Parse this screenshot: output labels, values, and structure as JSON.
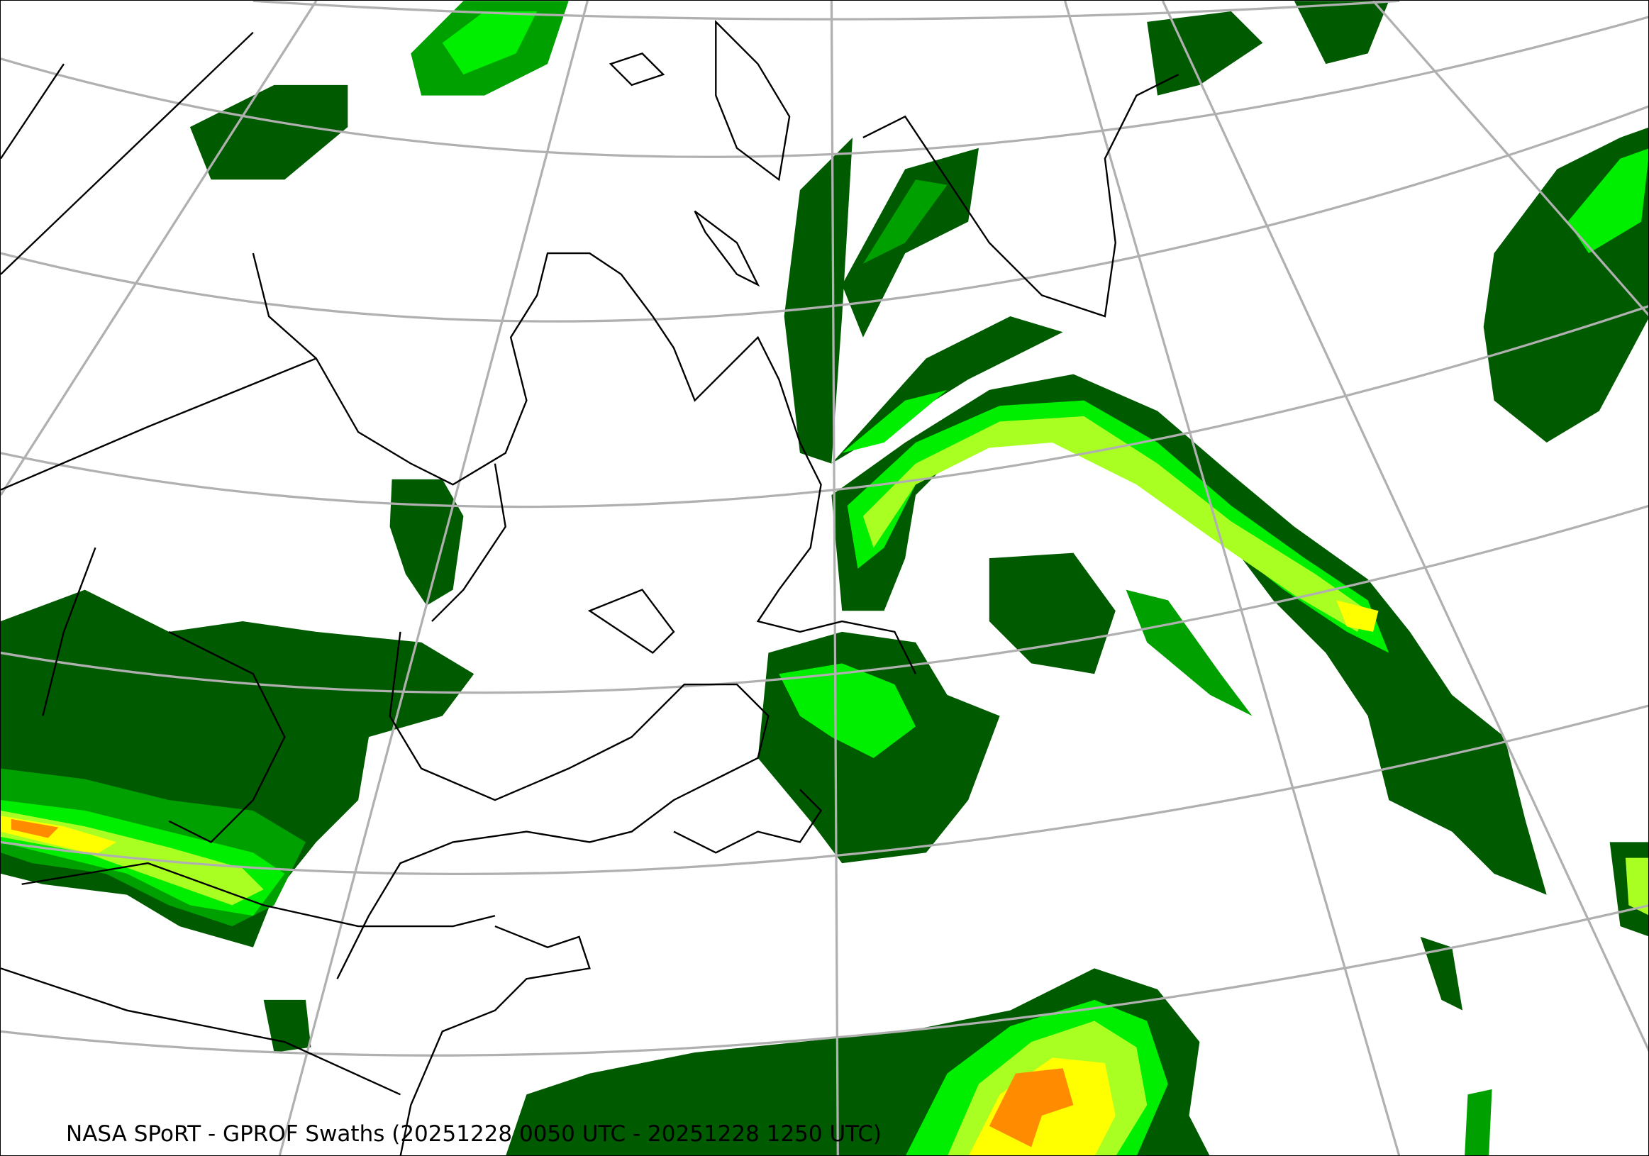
{
  "caption": "NASA SPoRT - GPROF Swaths (20251228 0050 UTC - 20251228 1250 UTC)",
  "colors": {
    "dark_green": "#005a00",
    "green": "#00a000",
    "bright_green": "#00ee00",
    "yellow_green": "#aaff22",
    "yellow": "#ffff00",
    "orange": "#ff8c00",
    "graticule": "#b0b0b0",
    "coastline": "#000000"
  }
}
